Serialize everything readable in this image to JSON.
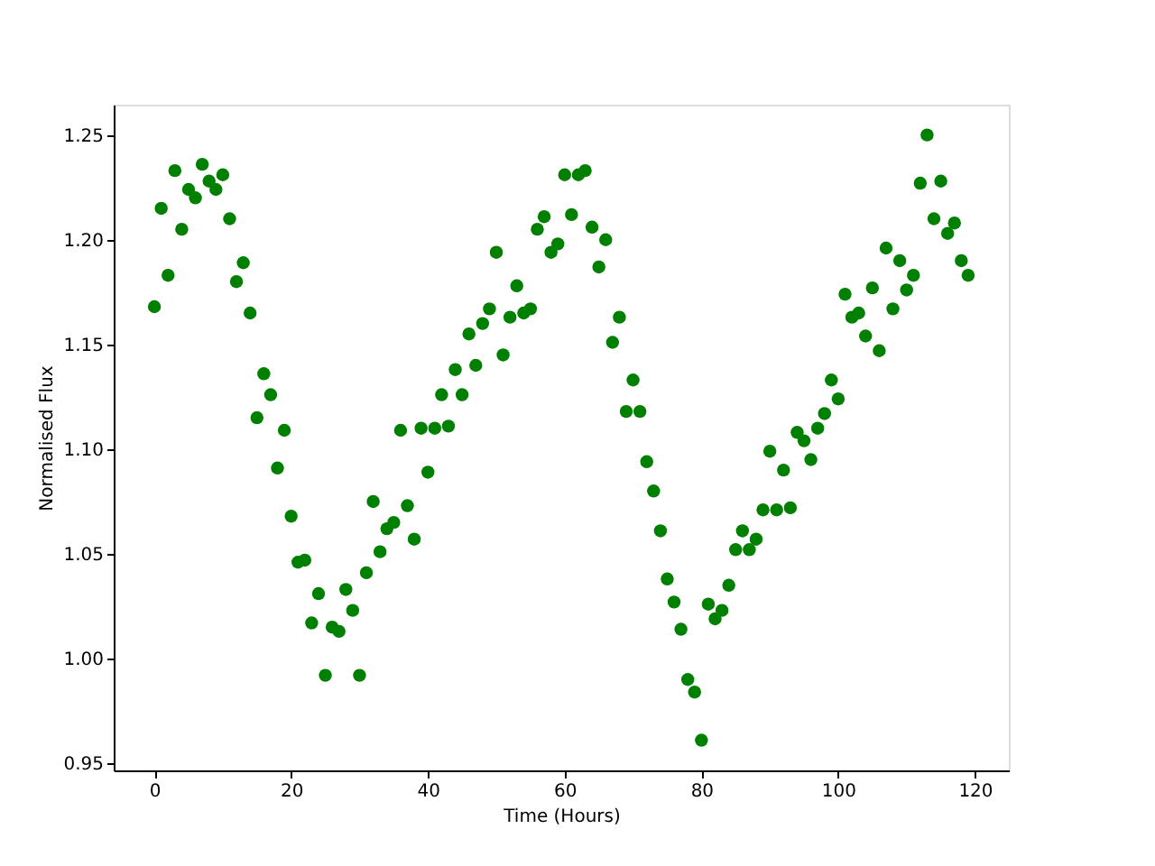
{
  "chart_data": {
    "type": "scatter",
    "xlabel": "Time (Hours)",
    "ylabel": "Normalised Flux",
    "x": [
      0,
      1,
      2,
      3,
      4,
      5,
      6,
      7,
      8,
      9,
      10,
      11,
      12,
      13,
      14,
      15,
      16,
      17,
      18,
      19,
      20,
      21,
      22,
      23,
      24,
      25,
      26,
      27,
      28,
      29,
      30,
      31,
      32,
      33,
      34,
      35,
      36,
      37,
      38,
      39,
      40,
      41,
      42,
      43,
      44,
      45,
      46,
      47,
      48,
      49,
      50,
      51,
      52,
      53,
      54,
      55,
      56,
      57,
      58,
      59,
      60,
      61,
      62,
      63,
      64,
      65,
      66,
      67,
      68,
      69,
      70,
      71,
      72,
      73,
      74,
      75,
      76,
      77,
      78,
      79,
      80,
      81,
      82,
      83,
      84,
      85,
      86,
      87,
      88,
      89,
      90,
      91,
      92,
      93,
      94,
      95,
      96,
      97,
      98,
      99,
      100,
      101,
      102,
      103,
      104,
      105,
      106,
      107,
      108,
      109,
      110,
      111,
      112,
      113,
      114,
      115,
      116,
      117,
      118,
      119
    ],
    "series": [
      {
        "color": "#008000",
        "values": [
          1.168,
          1.215,
          1.183,
          1.233,
          1.205,
          1.224,
          1.22,
          1.236,
          1.228,
          1.224,
          1.231,
          1.21,
          1.18,
          1.189,
          1.165,
          1.115,
          1.136,
          1.126,
          1.091,
          1.109,
          1.068,
          1.046,
          1.047,
          1.017,
          1.031,
          0.992,
          1.015,
          1.013,
          1.033,
          1.023,
          0.992,
          1.041,
          1.075,
          1.051,
          1.062,
          1.065,
          1.109,
          1.073,
          1.057,
          1.11,
          1.089,
          1.11,
          1.126,
          1.111,
          1.138,
          1.126,
          1.155,
          1.14,
          1.16,
          1.167,
          1.194,
          1.145,
          1.163,
          1.178,
          1.165,
          1.167,
          1.205,
          1.211,
          1.194,
          1.198,
          1.231,
          1.212,
          1.231,
          1.233,
          1.206,
          1.187,
          1.2,
          1.151,
          1.163,
          1.118,
          1.133,
          1.118,
          1.094,
          1.08,
          1.061,
          1.038,
          1.027,
          1.014,
          0.99,
          0.984,
          0.961,
          1.026,
          1.019,
          1.023,
          1.035,
          1.052,
          1.061,
          1.052,
          1.057,
          1.071,
          1.099,
          1.071,
          1.09,
          1.072,
          1.108,
          1.104,
          1.095,
          1.11,
          1.117,
          1.133,
          1.124,
          1.174,
          1.163,
          1.165,
          1.154,
          1.177,
          1.147,
          1.196,
          1.167,
          1.19,
          1.176,
          1.183,
          1.227,
          1.25,
          1.21,
          1.228,
          1.203,
          1.208,
          1.19,
          1.183
        ]
      }
    ],
    "xlim": [
      -5.95,
      124.95
    ],
    "xticks": [
      0,
      20,
      40,
      60,
      80,
      100,
      120
    ],
    "ylim": [
      0.9466,
      1.2645
    ],
    "yticks": [
      {
        "value": 0.95,
        "label": "0.95"
      },
      {
        "value": 1.0,
        "label": "1.00"
      },
      {
        "value": 1.05,
        "label": "1.05"
      },
      {
        "value": 1.1,
        "label": "1.10"
      },
      {
        "value": 1.15,
        "label": "1.15"
      },
      {
        "value": 1.2,
        "label": "1.20"
      },
      {
        "value": 1.25,
        "label": "1.25"
      }
    ],
    "grid": false,
    "marker": "circle"
  }
}
